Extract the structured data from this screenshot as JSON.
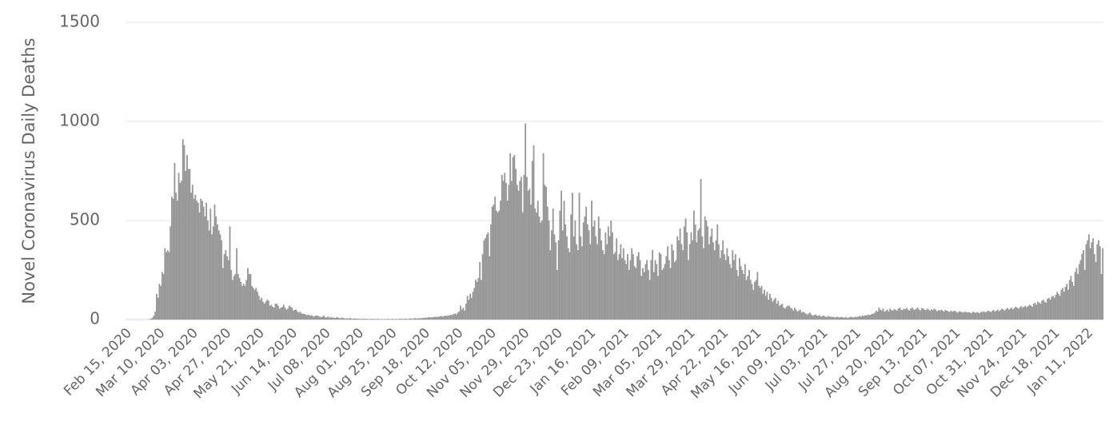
{
  "chart_data": {
    "type": "bar",
    "y_axis_label": "Novel Coronavirus Daily Deaths",
    "color": "#999999",
    "grid": true,
    "ylim": [
      0,
      1500
    ],
    "yticks": [
      0,
      500,
      1000,
      1500
    ],
    "categories": [
      "Feb 15, 2020",
      null,
      null,
      null,
      null,
      null,
      null,
      null,
      null,
      null,
      null,
      null,
      null,
      null,
      null,
      null,
      null,
      null,
      null,
      null,
      null,
      null,
      null,
      null,
      "Mar 10, 2020",
      null,
      null,
      null,
      null,
      null,
      null,
      null,
      null,
      null,
      null,
      null,
      null,
      null,
      null,
      null,
      null,
      null,
      null,
      null,
      null,
      null,
      null,
      null,
      "Apr 03, 2020",
      null,
      null,
      null,
      null,
      null,
      null,
      null,
      null,
      null,
      null,
      null,
      null,
      null,
      null,
      null,
      null,
      null,
      null,
      null,
      null,
      null,
      null,
      null,
      "Apr 27, 2020",
      null,
      null,
      null,
      null,
      null,
      null,
      null,
      null,
      null,
      null,
      null,
      null,
      null,
      null,
      null,
      null,
      null,
      null,
      null,
      null,
      null,
      null,
      null,
      "May 21, 2020",
      null,
      null,
      null,
      null,
      null,
      null,
      null,
      null,
      null,
      null,
      null,
      null,
      null,
      null,
      null,
      null,
      null,
      null,
      null,
      null,
      null,
      null,
      null,
      "Jun 14, 2020",
      null,
      null,
      null,
      null,
      null,
      null,
      null,
      null,
      null,
      null,
      null,
      null,
      null,
      null,
      null,
      null,
      null,
      null,
      null,
      null,
      null,
      null,
      null,
      "Jul 08, 2020",
      null,
      null,
      null,
      null,
      null,
      null,
      null,
      null,
      null,
      null,
      null,
      null,
      null,
      null,
      null,
      null,
      null,
      null,
      null,
      null,
      null,
      null,
      null,
      "Aug 01, 2020",
      null,
      null,
      null,
      null,
      null,
      null,
      null,
      null,
      null,
      null,
      null,
      null,
      null,
      null,
      null,
      null,
      null,
      null,
      null,
      null,
      null,
      null,
      null,
      "Aug 25, 2020",
      null,
      null,
      null,
      null,
      null,
      null,
      null,
      null,
      null,
      null,
      null,
      null,
      null,
      null,
      null,
      null,
      null,
      null,
      null,
      null,
      null,
      null,
      null,
      "Sep 18, 2020",
      null,
      null,
      null,
      null,
      null,
      null,
      null,
      null,
      null,
      null,
      null,
      null,
      null,
      null,
      null,
      null,
      null,
      null,
      null,
      null,
      null,
      null,
      null,
      "Oct 12, 2020",
      null,
      null,
      null,
      null,
      null,
      null,
      null,
      null,
      null,
      null,
      null,
      null,
      null,
      null,
      null,
      null,
      null,
      null,
      null,
      null,
      null,
      null,
      null,
      "Nov 05, 2020",
      null,
      null,
      null,
      null,
      null,
      null,
      null,
      null,
      null,
      null,
      null,
      null,
      null,
      null,
      null,
      null,
      null,
      null,
      null,
      null,
      null,
      null,
      null,
      "Nov 29, 2020",
      null,
      null,
      null,
      null,
      null,
      null,
      null,
      null,
      null,
      null,
      null,
      null,
      null,
      null,
      null,
      null,
      null,
      null,
      null,
      null,
      null,
      null,
      null,
      "Dec 23, 2020",
      null,
      null,
      null,
      null,
      null,
      null,
      null,
      null,
      null,
      null,
      null,
      null,
      null,
      null,
      null,
      null,
      null,
      null,
      null,
      null,
      null,
      null,
      null,
      "Jan 16, 2021",
      null,
      null,
      null,
      null,
      null,
      null,
      null,
      null,
      null,
      null,
      null,
      null,
      null,
      null,
      null,
      null,
      null,
      null,
      null,
      null,
      null,
      null,
      null,
      "Feb 09, 2021",
      null,
      null,
      null,
      null,
      null,
      null,
      null,
      null,
      null,
      null,
      null,
      null,
      null,
      null,
      null,
      null,
      null,
      null,
      null,
      null,
      null,
      null,
      null,
      "Mar 05, 2021",
      null,
      null,
      null,
      null,
      null,
      null,
      null,
      null,
      null,
      null,
      null,
      null,
      null,
      null,
      null,
      null,
      null,
      null,
      null,
      null,
      null,
      null,
      null,
      "Mar 29, 2021",
      null,
      null,
      null,
      null,
      null,
      null,
      null,
      null,
      null,
      null,
      null,
      null,
      null,
      null,
      null,
      null,
      null,
      null,
      null,
      null,
      null,
      null,
      null,
      "Apr 22, 2021",
      null,
      null,
      null,
      null,
      null,
      null,
      null,
      null,
      null,
      null,
      null,
      null,
      null,
      null,
      null,
      null,
      null,
      null,
      null,
      null,
      null,
      null,
      null,
      "May 16, 2021",
      null,
      null,
      null,
      null,
      null,
      null,
      null,
      null,
      null,
      null,
      null,
      null,
      null,
      null,
      null,
      null,
      null,
      null,
      null,
      null,
      null,
      null,
      null,
      "Jun 09, 2021",
      null,
      null,
      null,
      null,
      null,
      null,
      null,
      null,
      null,
      null,
      null,
      null,
      null,
      null,
      null,
      null,
      null,
      null,
      null,
      null,
      null,
      null,
      null,
      "Jul 03, 2021",
      null,
      null,
      null,
      null,
      null,
      null,
      null,
      null,
      null,
      null,
      null,
      null,
      null,
      null,
      null,
      null,
      null,
      null,
      null,
      null,
      null,
      null,
      null,
      "Jul 27, 2021",
      null,
      null,
      null,
      null,
      null,
      null,
      null,
      null,
      null,
      null,
      null,
      null,
      null,
      null,
      null,
      null,
      null,
      null,
      null,
      null,
      null,
      null,
      null,
      "Aug 20, 2021",
      null,
      null,
      null,
      null,
      null,
      null,
      null,
      null,
      null,
      null,
      null,
      null,
      null,
      null,
      null,
      null,
      null,
      null,
      null,
      null,
      null,
      null,
      null,
      "Sep 13, 2021",
      null,
      null,
      null,
      null,
      null,
      null,
      null,
      null,
      null,
      null,
      null,
      null,
      null,
      null,
      null,
      null,
      null,
      null,
      null,
      null,
      null,
      null,
      null,
      "Oct 07, 2021",
      null,
      null,
      null,
      null,
      null,
      null,
      null,
      null,
      null,
      null,
      null,
      null,
      null,
      null,
      null,
      null,
      null,
      null,
      null,
      null,
      null,
      null,
      null,
      "Oct 31, 2021",
      null,
      null,
      null,
      null,
      null,
      null,
      null,
      null,
      null,
      null,
      null,
      null,
      null,
      null,
      null,
      null,
      null,
      null,
      null,
      null,
      null,
      null,
      null,
      "Nov 24, 2021",
      null,
      null,
      null,
      null,
      null,
      null,
      null,
      null,
      null,
      null,
      null,
      null,
      null,
      null,
      null,
      null,
      null,
      null,
      null,
      null,
      null,
      null,
      null,
      "Dec 18, 2021",
      null,
      null,
      null,
      null,
      null,
      null,
      null,
      null,
      null,
      null,
      null,
      null,
      null,
      null,
      null,
      null,
      null,
      null,
      null,
      null,
      null,
      null,
      null,
      "Jan 11, 2022",
      null,
      null,
      null,
      null,
      null,
      null,
      null,
      null,
      null,
      null,
      null
    ],
    "values": [
      0,
      0,
      0,
      0,
      0,
      0,
      0,
      0,
      0,
      0,
      0,
      0,
      0,
      0,
      0,
      0,
      1,
      2,
      5,
      10,
      20,
      40,
      130,
      110,
      180,
      170,
      240,
      230,
      360,
      340,
      350,
      340,
      470,
      620,
      610,
      790,
      640,
      600,
      740,
      690,
      700,
      910,
      880,
      750,
      830,
      760,
      760,
      640,
      680,
      610,
      630,
      600,
      590,
      540,
      610,
      600,
      570,
      520,
      590,
      500,
      450,
      560,
      430,
      470,
      580,
      520,
      480,
      450,
      430,
      400,
      260,
      330,
      350,
      320,
      300,
      470,
      250,
      200,
      220,
      230,
      360,
      230,
      210,
      190,
      170,
      180,
      170,
      200,
      260,
      230,
      230,
      170,
      160,
      150,
      160,
      140,
      120,
      100,
      110,
      90,
      80,
      90,
      100,
      95,
      70,
      75,
      65,
      60,
      80,
      80,
      70,
      55,
      60,
      65,
      75,
      60,
      50,
      55,
      70,
      65,
      60,
      45,
      50,
      50,
      40,
      35,
      40,
      30,
      30,
      28,
      25,
      22,
      25,
      20,
      22,
      18,
      15,
      20,
      20,
      18,
      15,
      12,
      15,
      20,
      12,
      10,
      15,
      10,
      12,
      10,
      10,
      8,
      10,
      12,
      8,
      6,
      10,
      8,
      6,
      5,
      6,
      5,
      8,
      5,
      4,
      6,
      5,
      4,
      5,
      3,
      4,
      3,
      5,
      3,
      4,
      3,
      2,
      3,
      4,
      3,
      3,
      2,
      4,
      3,
      2,
      3,
      2,
      3,
      2,
      4,
      3,
      2,
      3,
      4,
      2,
      3,
      3,
      2,
      5,
      3,
      4,
      3,
      5,
      4,
      3,
      5,
      6,
      4,
      5,
      7,
      6,
      5,
      8,
      6,
      7,
      9,
      8,
      10,
      9,
      12,
      11,
      10,
      12,
      14,
      12,
      15,
      13,
      16,
      18,
      15,
      17,
      20,
      18,
      22,
      20,
      25,
      22,
      28,
      30,
      25,
      35,
      40,
      70,
      50,
      60,
      45,
      80,
      120,
      100,
      130,
      110,
      140,
      160,
      200,
      190,
      210,
      290,
      200,
      330,
      400,
      410,
      430,
      440,
      320,
      480,
      570,
      580,
      620,
      550,
      540,
      550,
      600,
      730,
      700,
      740,
      690,
      600,
      680,
      840,
      700,
      820,
      830,
      760,
      680,
      650,
      700,
      720,
      540,
      730,
      990,
      720,
      650,
      660,
      580,
      800,
      880,
      560,
      540,
      600,
      520,
      490,
      500,
      840,
      680,
      670,
      570,
      500,
      350,
      450,
      560,
      430,
      390,
      250,
      400,
      550,
      650,
      450,
      600,
      480,
      420,
      360,
      340,
      530,
      640,
      420,
      500,
      380,
      350,
      640,
      420,
      370,
      490,
      520,
      570,
      480,
      450,
      380,
      600,
      470,
      500,
      420,
      380,
      520,
      460,
      400,
      350,
      330,
      440,
      380,
      470,
      420,
      500,
      440,
      330,
      340,
      410,
      300,
      330,
      380,
      310,
      360,
      300,
      280,
      330,
      250,
      300,
      360,
      330,
      270,
      260,
      320,
      340,
      300,
      220,
      260,
      240,
      280,
      300,
      250,
      200,
      300,
      350,
      240,
      300,
      280,
      220,
      340,
      330,
      250,
      260,
      280,
      320,
      370,
      300,
      260,
      380,
      350,
      290,
      300,
      420,
      400,
      460,
      380,
      350,
      470,
      510,
      440,
      300,
      380,
      440,
      400,
      550,
      480,
      390,
      450,
      460,
      710,
      420,
      360,
      520,
      500,
      470,
      380,
      420,
      460,
      390,
      350,
      400,
      480,
      380,
      310,
      350,
      400,
      330,
      300,
      360,
      320,
      280,
      260,
      350,
      300,
      330,
      250,
      220,
      310,
      270,
      250,
      230,
      280,
      200,
      220,
      250,
      200,
      180,
      150,
      190,
      200,
      240,
      170,
      160,
      170,
      130,
      150,
      120,
      140,
      100,
      130,
      110,
      90,
      100,
      110,
      80,
      95,
      70,
      75,
      80,
      60,
      55,
      65,
      70,
      70,
      60,
      55,
      45,
      60,
      50,
      40,
      45,
      50,
      35,
      40,
      35,
      30,
      25,
      30,
      35,
      25,
      20,
      22,
      25,
      20,
      18,
      22,
      15,
      18,
      20,
      15,
      12,
      18,
      15,
      15,
      12,
      14,
      10,
      12,
      15,
      10,
      12,
      14,
      10,
      10,
      12,
      8,
      10,
      12,
      15,
      10,
      12,
      14,
      12,
      15,
      18,
      15,
      20,
      18,
      22,
      20,
      25,
      22,
      25,
      28,
      30,
      35,
      45,
      40,
      60,
      50,
      45,
      55,
      40,
      45,
      50,
      40,
      55,
      48,
      45,
      52,
      50,
      45,
      55,
      60,
      50,
      48,
      55,
      52,
      58,
      50,
      45,
      55,
      60,
      52,
      48,
      55,
      60,
      50,
      45,
      58,
      55,
      50,
      48,
      55,
      50,
      45,
      52,
      48,
      55,
      50,
      42,
      48,
      45,
      50,
      45,
      40,
      48,
      45,
      42,
      38,
      45,
      40,
      42,
      45,
      38,
      35,
      42,
      40,
      38,
      35,
      40,
      38,
      36,
      38,
      35,
      32,
      40,
      36,
      34,
      38,
      35,
      32,
      40,
      38,
      42,
      36,
      40,
      45,
      42,
      38,
      44,
      48,
      40,
      45,
      50,
      42,
      48,
      55,
      50,
      45,
      52,
      58,
      50,
      55,
      60,
      52,
      58,
      65,
      60,
      55,
      62,
      68,
      60,
      65,
      70,
      62,
      68,
      75,
      70,
      65,
      80,
      85,
      75,
      90,
      85,
      80,
      95,
      100,
      90,
      85,
      105,
      110,
      100,
      115,
      120,
      110,
      125,
      140,
      130,
      120,
      150,
      160,
      140,
      165,
      180,
      150,
      200,
      220,
      190,
      170,
      240,
      260,
      230,
      280,
      300,
      330,
      350,
      250,
      380,
      400,
      430,
      360,
      390,
      410,
      330,
      290,
      380,
      400,
      370,
      230,
      360
    ]
  }
}
